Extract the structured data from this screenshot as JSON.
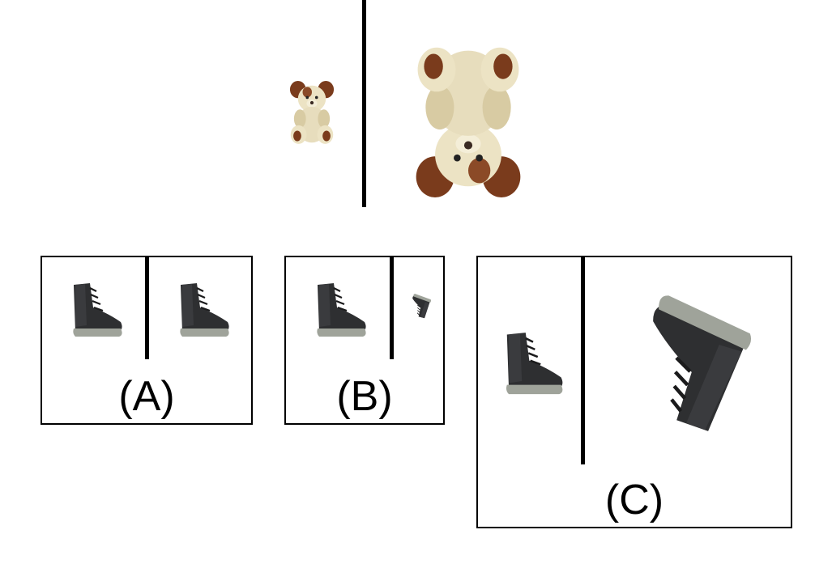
{
  "reference": {
    "left_object": "teddy-bear",
    "right_object": "teddy-bear-upside-down"
  },
  "options": [
    {
      "label": "(A)",
      "left_object": "boot",
      "right_object": "boot"
    },
    {
      "label": "(B)",
      "left_object": "boot",
      "right_object": "boot-small-rotated"
    },
    {
      "label": "(C)",
      "left_object": "boot",
      "right_object": "boot-large-rotated"
    }
  ],
  "colors": {
    "plush_cream": "#ece3c4",
    "plush_shade": "#d8cba3",
    "plush_brown": "#7a3b1c",
    "boot_dark": "#2e2f31",
    "boot_sole": "#9fa39a",
    "line": "#000000"
  }
}
